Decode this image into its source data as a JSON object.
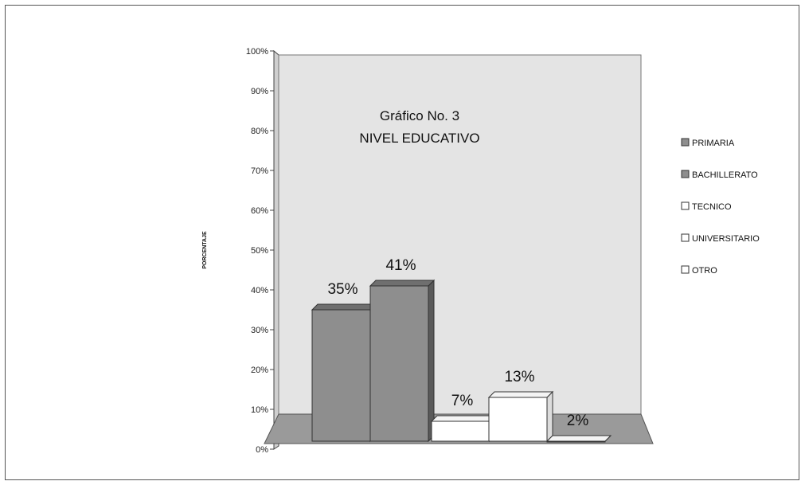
{
  "chart_data": {
    "type": "bar",
    "title_line1": "Gráfico No. 3",
    "title_line2": "NIVEL EDUCATIVO",
    "ylabel": "PORCENTAJE",
    "xlabel": "",
    "ylim": [
      0,
      100
    ],
    "yticks": [
      "0%",
      "10%",
      "20%",
      "30%",
      "40%",
      "50%",
      "60%",
      "70%",
      "80%",
      "90%",
      "100%"
    ],
    "categories": [
      "PRIMARIA",
      "BACHILLERATO",
      "TECNICO",
      "UNIVERSITARIO",
      "OTRO"
    ],
    "values": [
      35,
      41,
      7,
      13,
      2
    ],
    "data_labels": [
      "35%",
      "41%",
      "7%",
      "13%",
      "2%"
    ],
    "legend_position": "right",
    "grid": false,
    "colors": {
      "filled_bar": "#8e8e8e",
      "empty_bar": "#ffffff",
      "wall": "#e4e4e4",
      "floor": "#9a9a9a"
    }
  }
}
